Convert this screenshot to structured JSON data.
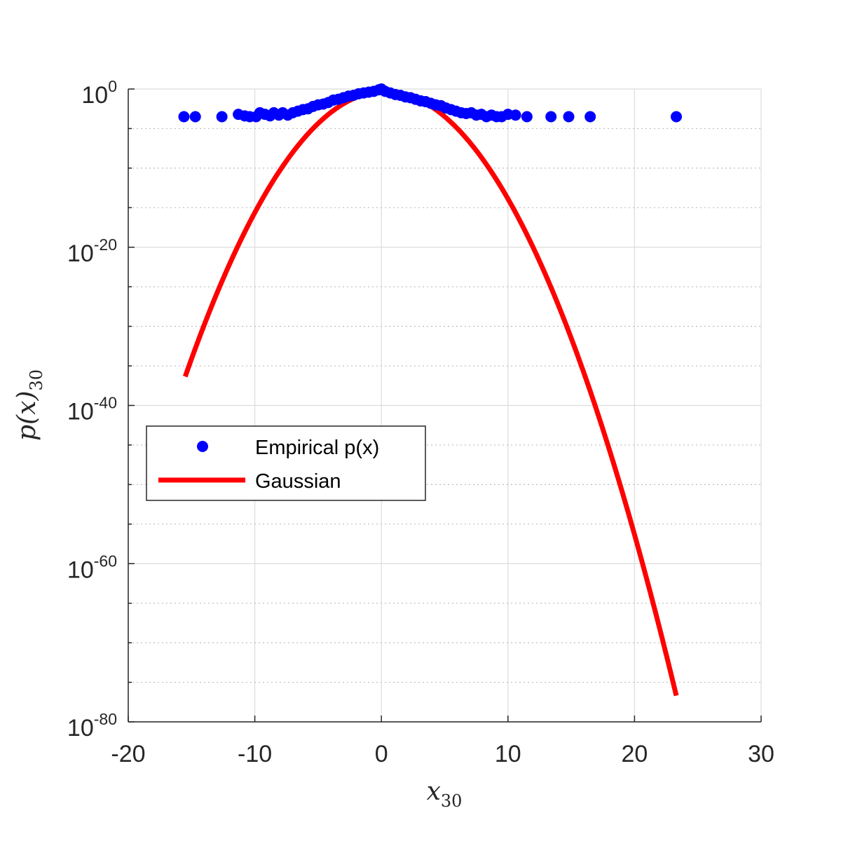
{
  "chart_data": {
    "type": "scatter",
    "xlabel": "x",
    "xlabel_sub": "30",
    "ylabel": "p(x)",
    "ylabel_sub": "30",
    "xlim": [
      -20,
      30
    ],
    "ylim": [
      1e-80,
      1
    ],
    "yscale": "log",
    "grid": true,
    "minor_grid_y": true,
    "legend_position": "middle-left",
    "x_ticks": [
      "-20",
      "-10",
      "0",
      "10",
      "20",
      "30"
    ],
    "y_ticks": [
      {
        "base": "10",
        "exp": "0"
      },
      {
        "base": "10",
        "exp": "-20"
      },
      {
        "base": "10",
        "exp": "-40"
      },
      {
        "base": "10",
        "exp": "-60"
      },
      {
        "base": "10",
        "exp": "-80"
      }
    ],
    "series": [
      {
        "name": "Empirical p(x)",
        "kind": "points",
        "color": "#0000FF",
        "points": [
          [
            -15.6,
            -3.5
          ],
          [
            -14.7,
            -3.5
          ],
          [
            -12.6,
            -3.5
          ],
          [
            -11.3,
            -3.2
          ],
          [
            -10.8,
            -3.4
          ],
          [
            -10.4,
            -3.5
          ],
          [
            -9.9,
            -3.5
          ],
          [
            -9.6,
            -3.0
          ],
          [
            -9.2,
            -3.2
          ],
          [
            -8.8,
            -3.4
          ],
          [
            -8.5,
            -3.0
          ],
          [
            -8.1,
            -3.3
          ],
          [
            -7.8,
            -3.0
          ],
          [
            -7.4,
            -3.3
          ],
          [
            -7.0,
            -3.0
          ],
          [
            -6.6,
            -2.8
          ],
          [
            -6.2,
            -2.6
          ],
          [
            -5.8,
            -2.5
          ],
          [
            -5.4,
            -2.2
          ],
          [
            -5.0,
            -2.0
          ],
          [
            -4.6,
            -1.9
          ],
          [
            -4.2,
            -1.7
          ],
          [
            -3.8,
            -1.4
          ],
          [
            -3.4,
            -1.3
          ],
          [
            -3.0,
            -1.1
          ],
          [
            -2.6,
            -0.9
          ],
          [
            -2.2,
            -0.8
          ],
          [
            -1.8,
            -0.6
          ],
          [
            -1.4,
            -0.5
          ],
          [
            -1.0,
            -0.4
          ],
          [
            -0.6,
            -0.3
          ],
          [
            -0.2,
            -0.1
          ],
          [
            0.0,
            0.0
          ],
          [
            0.3,
            -0.3
          ],
          [
            0.7,
            -0.5
          ],
          [
            1.1,
            -0.7
          ],
          [
            1.5,
            -0.8
          ],
          [
            1.9,
            -1.0
          ],
          [
            2.3,
            -1.1
          ],
          [
            2.7,
            -1.3
          ],
          [
            3.1,
            -1.5
          ],
          [
            3.5,
            -1.6
          ],
          [
            3.9,
            -1.8
          ],
          [
            4.3,
            -2.0
          ],
          [
            4.7,
            -2.1
          ],
          [
            5.1,
            -2.4
          ],
          [
            5.5,
            -2.6
          ],
          [
            5.9,
            -2.8
          ],
          [
            6.3,
            -3.0
          ],
          [
            6.7,
            -3.1
          ],
          [
            7.1,
            -3.0
          ],
          [
            7.5,
            -3.3
          ],
          [
            7.9,
            -3.2
          ],
          [
            8.3,
            -3.5
          ],
          [
            8.7,
            -3.3
          ],
          [
            9.1,
            -3.5
          ],
          [
            9.5,
            -3.5
          ],
          [
            10.0,
            -3.2
          ],
          [
            10.6,
            -3.3
          ],
          [
            11.5,
            -3.5
          ],
          [
            13.4,
            -3.5
          ],
          [
            14.8,
            -3.5
          ],
          [
            16.5,
            -3.5
          ],
          [
            23.3,
            -3.5
          ]
        ]
      },
      {
        "name": "Gaussian",
        "kind": "line",
        "color": "#FF0000",
        "mu": 0.3,
        "peak_log10": -0.3,
        "curvature_log10_per_x2": 0.1444,
        "x_range": [
          -15.5,
          23.3
        ]
      }
    ]
  }
}
